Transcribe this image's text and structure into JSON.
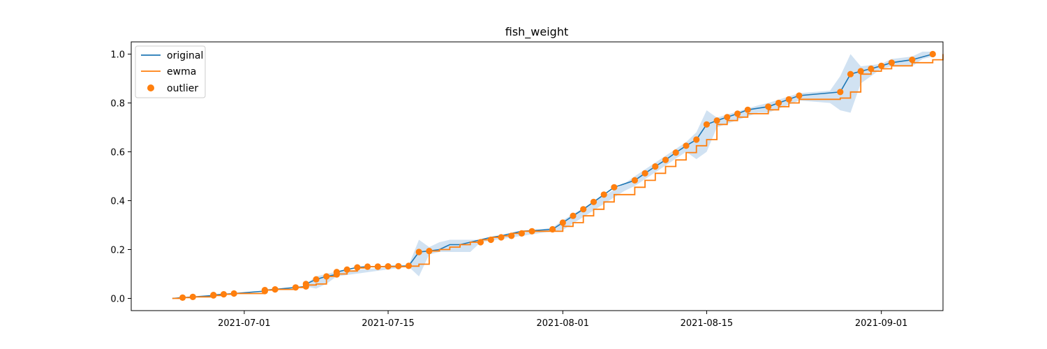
{
  "chart_data": {
    "type": "line",
    "title": "fish_weight",
    "xlabel": "",
    "ylabel": "",
    "x_range": [
      "2021-06-20",
      "2021-09-07"
    ],
    "ylim": [
      -0.05,
      1.05
    ],
    "x_ticks": [
      "2021-07-01",
      "2021-07-15",
      "2021-08-01",
      "2021-08-15",
      "2021-09-01"
    ],
    "y_ticks": [
      "0.0",
      "0.2",
      "0.4",
      "0.6",
      "0.8",
      "1.0"
    ],
    "grid": false,
    "legend": {
      "placement": "top-left"
    },
    "colors": {
      "original": "#1f77b4",
      "ewma": "#ff7f0e",
      "outlier": "#ff7f0e",
      "band": "#c6dbef"
    },
    "series": [
      {
        "name": "original",
        "style": "line",
        "points": [
          [
            "2021-06-24",
            0.0
          ],
          [
            "2021-06-25",
            0.003
          ],
          [
            "2021-06-26",
            0.006
          ],
          [
            "2021-06-28",
            0.012
          ],
          [
            "2021-06-28",
            0.014
          ],
          [
            "2021-06-29",
            0.017
          ],
          [
            "2021-06-30",
            0.02
          ],
          [
            "2021-07-03",
            0.03
          ],
          [
            "2021-07-03",
            0.034
          ],
          [
            "2021-07-04",
            0.037
          ],
          [
            "2021-07-06",
            0.045
          ],
          [
            "2021-07-07",
            0.049
          ],
          [
            "2021-07-07",
            0.059
          ],
          [
            "2021-07-08",
            0.078
          ],
          [
            "2021-07-09",
            0.09
          ],
          [
            "2021-07-10",
            0.098
          ],
          [
            "2021-07-10",
            0.108
          ],
          [
            "2021-07-11",
            0.118
          ],
          [
            "2021-07-12",
            0.127
          ],
          [
            "2021-07-13",
            0.13
          ],
          [
            "2021-07-14",
            0.13
          ],
          [
            "2021-07-14",
            0.13
          ],
          [
            "2021-07-15",
            0.131
          ],
          [
            "2021-07-16",
            0.132
          ],
          [
            "2021-07-17",
            0.133
          ],
          [
            "2021-07-18",
            0.19
          ],
          [
            "2021-07-19",
            0.194
          ],
          [
            "2021-07-20",
            0.2
          ],
          [
            "2021-07-21",
            0.22
          ],
          [
            "2021-07-22",
            0.22
          ],
          [
            "2021-07-23",
            0.23
          ],
          [
            "2021-07-24",
            0.24
          ],
          [
            "2021-07-25",
            0.25
          ],
          [
            "2021-07-26",
            0.256
          ],
          [
            "2021-07-27",
            0.266
          ],
          [
            "2021-07-28",
            0.275
          ],
          [
            "2021-07-31",
            0.283
          ],
          [
            "2021-08-01",
            0.31
          ],
          [
            "2021-08-02",
            0.338
          ],
          [
            "2021-08-03",
            0.365
          ],
          [
            "2021-08-04",
            0.395
          ],
          [
            "2021-08-05",
            0.425
          ],
          [
            "2021-08-06",
            0.455
          ],
          [
            "2021-08-08",
            0.483
          ],
          [
            "2021-08-09",
            0.512
          ],
          [
            "2021-08-10",
            0.54
          ],
          [
            "2021-08-11",
            0.567
          ],
          [
            "2021-08-12",
            0.597
          ],
          [
            "2021-08-13",
            0.625
          ],
          [
            "2021-08-14",
            0.65
          ],
          [
            "2021-08-15",
            0.712
          ],
          [
            "2021-08-16",
            0.728
          ],
          [
            "2021-08-17",
            0.742
          ],
          [
            "2021-08-18",
            0.756
          ],
          [
            "2021-08-19",
            0.772
          ],
          [
            "2021-08-21",
            0.785
          ],
          [
            "2021-08-22",
            0.8
          ],
          [
            "2021-08-23",
            0.815
          ],
          [
            "2021-08-24",
            0.83
          ],
          [
            "2021-08-28",
            0.845
          ],
          [
            "2021-08-29",
            0.918
          ],
          [
            "2021-08-30",
            0.93
          ],
          [
            "2021-08-31",
            0.94
          ],
          [
            "2021-09-01",
            0.952
          ],
          [
            "2021-09-02",
            0.965
          ],
          [
            "2021-09-04",
            0.977
          ],
          [
            "2021-09-06",
            1.0
          ]
        ]
      },
      {
        "name": "ewma",
        "style": "step",
        "points": [
          [
            "2021-06-24",
            0.0
          ],
          [
            "2021-06-25",
            0.003
          ],
          [
            "2021-06-26",
            0.006
          ],
          [
            "2021-06-28",
            0.012
          ],
          [
            "2021-06-29",
            0.017
          ],
          [
            "2021-06-30",
            0.02
          ],
          [
            "2021-07-03",
            0.02
          ],
          [
            "2021-07-03",
            0.034
          ],
          [
            "2021-07-04",
            0.037
          ],
          [
            "2021-07-06",
            0.045
          ],
          [
            "2021-07-07",
            0.055
          ],
          [
            "2021-07-08",
            0.059
          ],
          [
            "2021-07-09",
            0.09
          ],
          [
            "2021-07-10",
            0.1
          ],
          [
            "2021-07-11",
            0.112
          ],
          [
            "2021-07-12",
            0.125
          ],
          [
            "2021-07-13",
            0.13
          ],
          [
            "2021-07-17",
            0.132
          ],
          [
            "2021-07-18",
            0.14
          ],
          [
            "2021-07-19",
            0.194
          ],
          [
            "2021-07-20",
            0.2
          ],
          [
            "2021-07-21",
            0.21
          ],
          [
            "2021-07-22",
            0.22
          ],
          [
            "2021-07-23",
            0.23
          ],
          [
            "2021-07-24",
            0.24
          ],
          [
            "2021-07-25",
            0.25
          ],
          [
            "2021-07-26",
            0.256
          ],
          [
            "2021-07-27",
            0.266
          ],
          [
            "2021-07-28",
            0.275
          ],
          [
            "2021-07-31",
            0.275
          ],
          [
            "2021-08-01",
            0.295
          ],
          [
            "2021-08-02",
            0.31
          ],
          [
            "2021-08-03",
            0.338
          ],
          [
            "2021-08-04",
            0.365
          ],
          [
            "2021-08-05",
            0.395
          ],
          [
            "2021-08-06",
            0.425
          ],
          [
            "2021-08-08",
            0.455
          ],
          [
            "2021-08-09",
            0.483
          ],
          [
            "2021-08-10",
            0.512
          ],
          [
            "2021-08-11",
            0.54
          ],
          [
            "2021-08-12",
            0.567
          ],
          [
            "2021-08-13",
            0.597
          ],
          [
            "2021-08-14",
            0.625
          ],
          [
            "2021-08-15",
            0.65
          ],
          [
            "2021-08-16",
            0.712
          ],
          [
            "2021-08-17",
            0.728
          ],
          [
            "2021-08-18",
            0.742
          ],
          [
            "2021-08-19",
            0.756
          ],
          [
            "2021-08-21",
            0.772
          ],
          [
            "2021-08-22",
            0.785
          ],
          [
            "2021-08-23",
            0.8
          ],
          [
            "2021-08-24",
            0.815
          ],
          [
            "2021-08-28",
            0.82
          ],
          [
            "2021-08-29",
            0.845
          ],
          [
            "2021-08-30",
            0.918
          ],
          [
            "2021-08-31",
            0.93
          ],
          [
            "2021-09-01",
            0.94
          ],
          [
            "2021-09-02",
            0.952
          ],
          [
            "2021-09-04",
            0.965
          ],
          [
            "2021-09-06",
            0.977
          ],
          [
            "2021-09-07",
            1.0
          ]
        ]
      },
      {
        "name": "outlier",
        "style": "scatter",
        "points": [
          [
            "2021-06-25",
            0.003
          ],
          [
            "2021-06-26",
            0.006
          ],
          [
            "2021-06-28",
            0.012
          ],
          [
            "2021-06-28",
            0.014
          ],
          [
            "2021-06-29",
            0.017
          ],
          [
            "2021-06-30",
            0.02
          ],
          [
            "2021-07-03",
            0.03
          ],
          [
            "2021-07-03",
            0.034
          ],
          [
            "2021-07-04",
            0.037
          ],
          [
            "2021-07-06",
            0.045
          ],
          [
            "2021-07-07",
            0.049
          ],
          [
            "2021-07-07",
            0.059
          ],
          [
            "2021-07-08",
            0.078
          ],
          [
            "2021-07-09",
            0.09
          ],
          [
            "2021-07-10",
            0.098
          ],
          [
            "2021-07-10",
            0.108
          ],
          [
            "2021-07-11",
            0.118
          ],
          [
            "2021-07-12",
            0.127
          ],
          [
            "2021-07-13",
            0.13
          ],
          [
            "2021-07-14",
            0.13
          ],
          [
            "2021-07-14",
            0.13
          ],
          [
            "2021-07-15",
            0.131
          ],
          [
            "2021-07-16",
            0.132
          ],
          [
            "2021-07-17",
            0.133
          ],
          [
            "2021-07-18",
            0.19
          ],
          [
            "2021-07-19",
            0.194
          ],
          [
            "2021-07-24",
            0.23
          ],
          [
            "2021-07-25",
            0.24
          ],
          [
            "2021-07-26",
            0.25
          ],
          [
            "2021-07-27",
            0.256
          ],
          [
            "2021-07-28",
            0.266
          ],
          [
            "2021-07-29",
            0.275
          ],
          [
            "2021-07-31",
            0.283
          ],
          [
            "2021-08-01",
            0.31
          ],
          [
            "2021-08-02",
            0.338
          ],
          [
            "2021-08-03",
            0.365
          ],
          [
            "2021-08-04",
            0.395
          ],
          [
            "2021-08-05",
            0.425
          ],
          [
            "2021-08-06",
            0.455
          ],
          [
            "2021-08-08",
            0.483
          ],
          [
            "2021-08-09",
            0.512
          ],
          [
            "2021-08-10",
            0.54
          ],
          [
            "2021-08-11",
            0.567
          ],
          [
            "2021-08-12",
            0.597
          ],
          [
            "2021-08-13",
            0.625
          ],
          [
            "2021-08-14",
            0.65
          ],
          [
            "2021-08-15",
            0.712
          ],
          [
            "2021-08-16",
            0.728
          ],
          [
            "2021-08-17",
            0.742
          ],
          [
            "2021-08-18",
            0.756
          ],
          [
            "2021-08-19",
            0.772
          ],
          [
            "2021-08-21",
            0.785
          ],
          [
            "2021-08-22",
            0.8
          ],
          [
            "2021-08-23",
            0.815
          ],
          [
            "2021-08-24",
            0.83
          ],
          [
            "2021-08-28",
            0.845
          ],
          [
            "2021-08-29",
            0.918
          ],
          [
            "2021-08-30",
            0.93
          ],
          [
            "2021-08-31",
            0.94
          ],
          [
            "2021-09-01",
            0.952
          ],
          [
            "2021-09-02",
            0.965
          ],
          [
            "2021-09-04",
            0.977
          ],
          [
            "2021-09-06",
            1.0
          ]
        ]
      }
    ],
    "band": [
      [
        "2021-07-07",
        0.049,
        0.059
      ],
      [
        "2021-07-08",
        0.04,
        0.09
      ],
      [
        "2021-07-09",
        0.06,
        0.1
      ],
      [
        "2021-07-10",
        0.09,
        0.11
      ],
      [
        "2021-07-17",
        0.13,
        0.135
      ],
      [
        "2021-07-18",
        0.09,
        0.24
      ],
      [
        "2021-07-19",
        0.18,
        0.21
      ],
      [
        "2021-07-20",
        0.19,
        0.23
      ],
      [
        "2021-07-21",
        0.19,
        0.24
      ],
      [
        "2021-07-23",
        0.19,
        0.24
      ],
      [
        "2021-07-24",
        0.23,
        0.24
      ],
      [
        "2021-07-31",
        0.275,
        0.29
      ],
      [
        "2021-08-01",
        0.28,
        0.32
      ],
      [
        "2021-08-07",
        0.44,
        0.47
      ],
      [
        "2021-08-08",
        0.46,
        0.5
      ],
      [
        "2021-08-13",
        0.6,
        0.64
      ],
      [
        "2021-08-14",
        0.57,
        0.68
      ],
      [
        "2021-08-15",
        0.6,
        0.77
      ],
      [
        "2021-08-16",
        0.7,
        0.74
      ],
      [
        "2021-08-20",
        0.76,
        0.79
      ],
      [
        "2021-08-21",
        0.76,
        0.8
      ],
      [
        "2021-08-24",
        0.81,
        0.84
      ],
      [
        "2021-08-27",
        0.8,
        0.85
      ],
      [
        "2021-08-28",
        0.77,
        0.91
      ],
      [
        "2021-08-29",
        0.76,
        1.0
      ],
      [
        "2021-08-30",
        0.88,
        0.95
      ],
      [
        "2021-09-01",
        0.94,
        0.96
      ],
      [
        "2021-09-02",
        0.95,
        0.98
      ],
      [
        "2021-09-04",
        0.95,
        0.99
      ],
      [
        "2021-09-05",
        0.98,
        1.01
      ],
      [
        "2021-09-06",
        0.99,
        1.01
      ]
    ]
  }
}
